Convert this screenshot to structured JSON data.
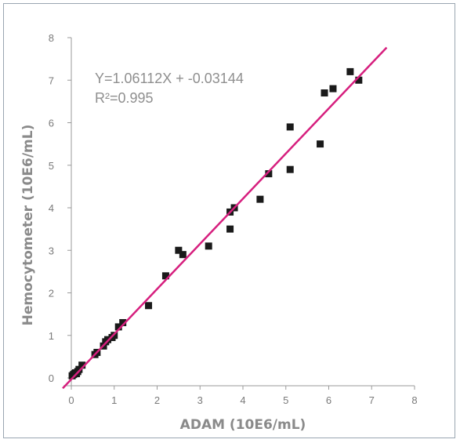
{
  "chart_data": {
    "type": "scatter",
    "title": "",
    "xlabel": "ADAM (10E6/mL)",
    "ylabel": "Hemocytometer (10E6/mL)",
    "xlim": [
      0,
      8
    ],
    "ylim": [
      0,
      8
    ],
    "xticks": [
      "0",
      "1",
      "2",
      "3",
      "4",
      "5",
      "6",
      "7",
      "8"
    ],
    "yticks": [
      "0",
      "1",
      "2",
      "3",
      "4",
      "5",
      "6",
      "7",
      "8"
    ],
    "grid": false,
    "annotations": {
      "equation": "Y=1.06112X + -0.03144",
      "r_squared": "R²=0.995"
    },
    "regression": {
      "slope": 1.06112,
      "intercept": -0.03144,
      "color": "#d61f7e"
    },
    "marker_color": "#1a1a1a",
    "points": [
      [
        0.02,
        0.05
      ],
      [
        0.05,
        0.08
      ],
      [
        0.08,
        0.1
      ],
      [
        0.1,
        0.12
      ],
      [
        0.12,
        0.1
      ],
      [
        0.15,
        0.15
      ],
      [
        0.18,
        0.2
      ],
      [
        0.25,
        0.3
      ],
      [
        0.55,
        0.55
      ],
      [
        0.6,
        0.6
      ],
      [
        0.75,
        0.75
      ],
      [
        0.8,
        0.85
      ],
      [
        0.85,
        0.9
      ],
      [
        0.95,
        0.95
      ],
      [
        1.0,
        1.0
      ],
      [
        1.1,
        1.2
      ],
      [
        1.2,
        1.3
      ],
      [
        1.8,
        1.7
      ],
      [
        2.2,
        2.4
      ],
      [
        2.5,
        3.0
      ],
      [
        2.6,
        2.9
      ],
      [
        3.2,
        3.1
      ],
      [
        3.7,
        3.9
      ],
      [
        3.7,
        3.5
      ],
      [
        3.8,
        4.0
      ],
      [
        4.4,
        4.2
      ],
      [
        4.6,
        4.8
      ],
      [
        5.1,
        5.9
      ],
      [
        5.1,
        4.9
      ],
      [
        5.8,
        5.5
      ],
      [
        5.9,
        6.7
      ],
      [
        6.1,
        6.8
      ],
      [
        6.5,
        7.2
      ],
      [
        6.7,
        7.0
      ]
    ]
  }
}
